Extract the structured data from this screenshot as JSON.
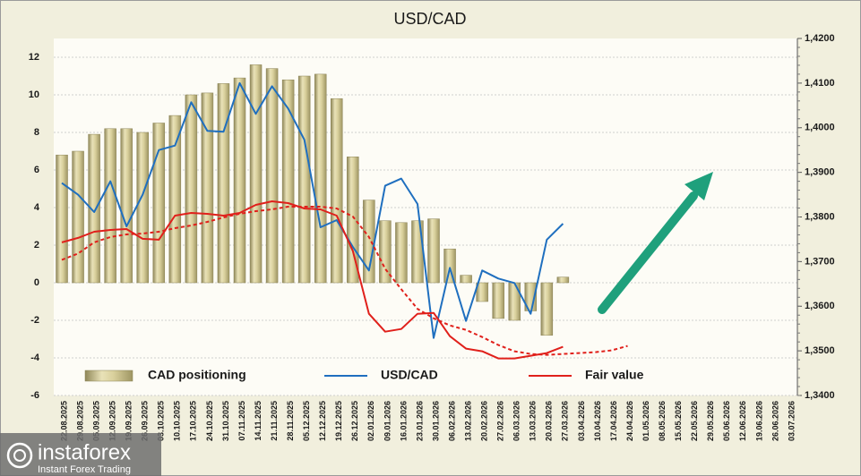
{
  "chart_data": {
    "type": "bar",
    "title": "USD/CAD",
    "categories": [
      "22.08.2025",
      "29.08.2025",
      "05.09.2025",
      "12.09.2025",
      "19.09.2025",
      "26.09.2025",
      "03.10.2025",
      "10.10.2025",
      "17.10.2025",
      "24.10.2025",
      "31.10.2025",
      "07.11.2025",
      "14.11.2025",
      "21.11.2025",
      "28.11.2025",
      "05.12.2025",
      "12.12.2025",
      "19.12.2025",
      "26.12.2025",
      "02.01.2026",
      "09.01.2026",
      "16.01.2026",
      "23.01.2026",
      "30.01.2026",
      "06.02.2026",
      "13.02.2026",
      "20.02.2026",
      "27.02.2026",
      "06.03.2026",
      "13.03.2026",
      "20.03.2026",
      "27.03.2026",
      "03.04.2026",
      "10.04.2026",
      "17.04.2026",
      "24.04.2026",
      "01.05.2026",
      "08.05.2026",
      "15.05.2026",
      "22.05.2026",
      "29.05.2026",
      "05.06.2026",
      "12.06.2026",
      "19.06.2026",
      "26.06.2026",
      "03.07.2026"
    ],
    "series": [
      {
        "name": "CAD positioning",
        "type": "bar",
        "color": "#c9c08e",
        "values": [
          6.8,
          7.0,
          7.9,
          8.2,
          8.2,
          8.0,
          8.5,
          8.9,
          10.0,
          10.1,
          10.6,
          10.9,
          11.6,
          11.4,
          10.8,
          11.0,
          11.1,
          9.8,
          6.7,
          4.4,
          3.3,
          3.2,
          3.3,
          3.4,
          1.8,
          0.4,
          -1.0,
          -1.9,
          -2.0,
          -1.5,
          -2.8,
          0.3,
          null,
          null,
          null,
          null,
          null,
          null,
          null,
          null,
          null,
          null,
          null,
          null,
          null,
          null
        ]
      },
      {
        "name": "USD/CAD",
        "type": "line",
        "axis": "y2",
        "color": "#1f6fbf",
        "values": [
          1.3876,
          1.385,
          1.3811,
          1.388,
          1.3779,
          1.385,
          1.395,
          1.396,
          1.4057,
          1.3993,
          1.3991,
          1.41,
          1.4031,
          1.4093,
          1.4043,
          1.3973,
          1.3777,
          1.3793,
          1.3733,
          1.368,
          1.387,
          1.3886,
          1.3829,
          1.3529,
          1.3686,
          1.3567,
          1.368,
          1.3662,
          1.3652,
          1.3583,
          1.3749,
          1.3785,
          null,
          null,
          null,
          null,
          null,
          null,
          null,
          null,
          null,
          null,
          null,
          null,
          null,
          null
        ]
      },
      {
        "name": "Fair value",
        "type": "line",
        "axis": "y2",
        "color": "#e0201b",
        "values": [
          1.3743,
          1.3753,
          1.3767,
          1.3771,
          1.3773,
          1.3751,
          1.3749,
          1.3803,
          1.3809,
          1.3807,
          1.3803,
          1.3809,
          1.3827,
          1.3835,
          1.3831,
          1.3819,
          1.3817,
          1.3803,
          1.3724,
          1.3583,
          1.3543,
          1.3549,
          1.3583,
          1.3585,
          1.3533,
          1.3505,
          1.3499,
          1.3483,
          1.3483,
          1.3489,
          1.3495,
          1.3509,
          null,
          null,
          null,
          null,
          null,
          null,
          null,
          null,
          null,
          null,
          null,
          null,
          null,
          null
        ]
      },
      {
        "type": "line",
        "axis": "y2",
        "color": "#e0201b",
        "dash": true,
        "values": [
          1.3704,
          1.3718,
          1.3743,
          1.3755,
          1.3761,
          1.3763,
          1.3767,
          1.3775,
          1.3781,
          1.3789,
          1.3799,
          1.3807,
          1.3813,
          1.3817,
          1.3823,
          1.3823,
          1.3823,
          1.3819,
          1.3801,
          1.3755,
          1.3684,
          1.3638,
          1.3594,
          1.3573,
          1.3557,
          1.3547,
          1.3531,
          1.3513,
          1.3499,
          1.3493,
          1.3491,
          1.3493,
          1.3495,
          1.3497,
          1.3501,
          1.3511,
          null,
          null,
          null,
          null,
          null,
          null,
          null,
          null,
          null,
          null
        ]
      }
    ],
    "ylim": [
      -6,
      13
    ],
    "yticks": [
      -6,
      -4,
      -2,
      0,
      2,
      4,
      6,
      8,
      10,
      12
    ],
    "y2lim": [
      1.34,
      1.42
    ],
    "y2ticks": [
      {
        "value": 1.34,
        "label": "1,3400"
      },
      {
        "value": 1.35,
        "label": "1,3500"
      },
      {
        "value": 1.36,
        "label": "1,3600"
      },
      {
        "value": 1.37,
        "label": "1,3700"
      },
      {
        "value": 1.38,
        "label": "1,3800"
      },
      {
        "value": 1.39,
        "label": "1,3900"
      },
      {
        "value": 1.4,
        "label": "1,4000"
      },
      {
        "value": 1.41,
        "label": "1,4100"
      },
      {
        "value": 1.42,
        "label": "1,4200"
      }
    ],
    "grid": true,
    "legend": "bottom"
  },
  "logo": {
    "brand": "instaforex",
    "tagline": "Instant Forex Trading"
  }
}
